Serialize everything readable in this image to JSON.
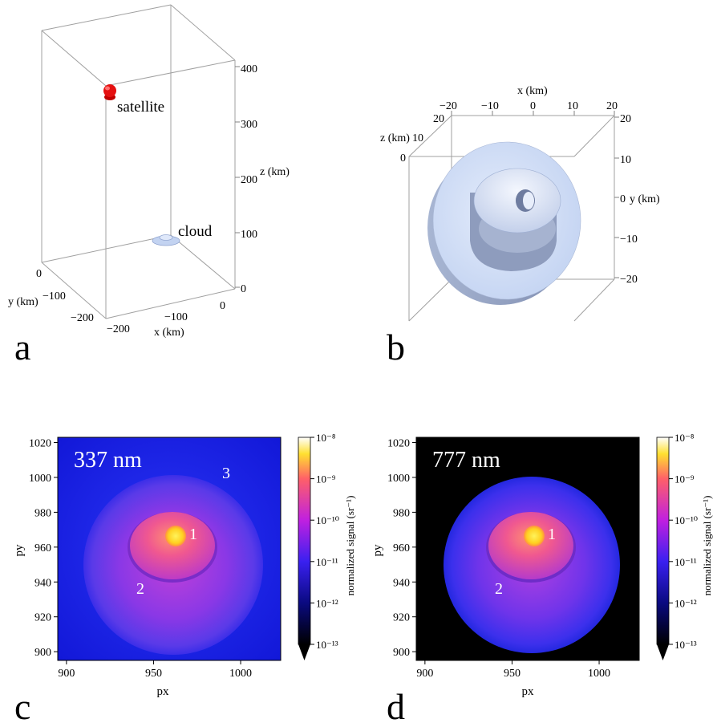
{
  "panel_a": {
    "letter": "a",
    "labels": {
      "satellite": "satellite",
      "cloud": "cloud",
      "x_axis": "x (km)",
      "y_axis": "y (km)",
      "z_axis": "z (km)"
    },
    "z_ticks": [
      "400",
      "300",
      "200",
      "100",
      "0"
    ],
    "x_ticks": [
      "−200",
      "−100",
      "0"
    ],
    "y_ticks": [
      "0",
      "−100",
      "−200"
    ]
  },
  "panel_b": {
    "letter": "b",
    "labels": {
      "x_axis": "x (km)",
      "y_axis": "y (km)",
      "z_axis": "z (km)"
    },
    "x_ticks": [
      "−20",
      "−10",
      "0",
      "10",
      "20"
    ],
    "y_ticks": [
      "20",
      "10",
      "0",
      "−10",
      "−20"
    ],
    "z_ticks": [
      "20",
      "10",
      "0"
    ]
  },
  "chart_data": [
    {
      "type": "heatmap",
      "panel": "c",
      "annotation": "337 nm",
      "region_labels": [
        "1",
        "2",
        "3"
      ],
      "xlabel": "px",
      "ylabel": "py",
      "xlim": [
        895,
        1023
      ],
      "ylim": [
        895,
        1023
      ],
      "x_ticks": [
        900,
        950,
        1000
      ],
      "y_ticks": [
        900,
        920,
        940,
        960,
        980,
        1000,
        1020
      ],
      "colorbar": {
        "label": "normalized signal (sr⁻¹)",
        "scale": "log",
        "range": [
          1e-13,
          1e-08
        ],
        "ticks": [
          "10⁻⁸",
          "10⁻⁹",
          "10⁻¹⁰",
          "10⁻¹¹",
          "10⁻¹²",
          "10⁻¹³"
        ]
      }
    },
    {
      "type": "heatmap",
      "panel": "d",
      "annotation": "777 nm",
      "region_labels": [
        "1",
        "2"
      ],
      "xlabel": "px",
      "ylabel": "py",
      "xlim": [
        895,
        1023
      ],
      "ylim": [
        895,
        1023
      ],
      "x_ticks": [
        900,
        950,
        1000
      ],
      "y_ticks": [
        900,
        920,
        940,
        960,
        980,
        1000,
        1020
      ],
      "colorbar": {
        "label": "normalized signal (sr⁻¹)",
        "scale": "log",
        "range": [
          1e-13,
          1e-08
        ],
        "ticks": [
          "10⁻⁸",
          "10⁻⁹",
          "10⁻¹⁰",
          "10⁻¹¹",
          "10⁻¹²",
          "10⁻¹³"
        ]
      }
    }
  ],
  "letters": {
    "c": "c",
    "d": "d"
  },
  "colors": {
    "box_line": "#9a9a9a",
    "satellite": "#e00000",
    "cloud": "#c8d8f4",
    "bg_337": "#1a1cf0",
    "bg_777": "#000000"
  }
}
